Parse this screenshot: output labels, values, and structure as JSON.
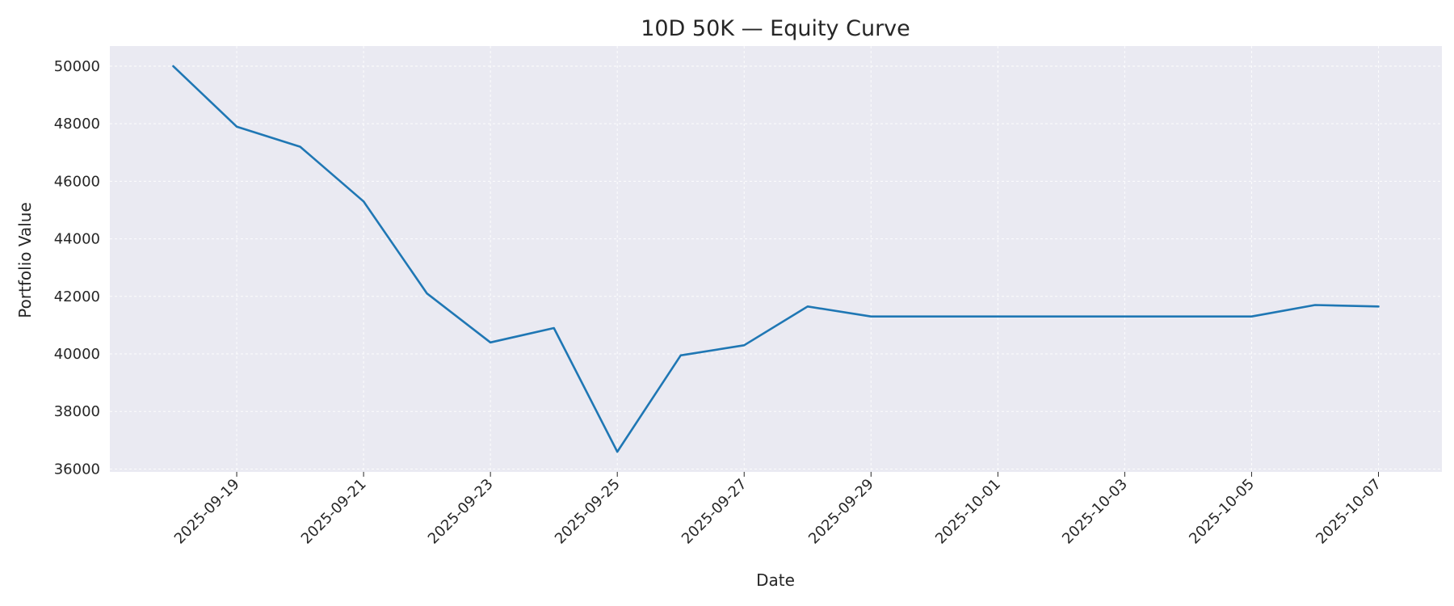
{
  "chart_data": {
    "type": "line",
    "title": "10D 50K — Equity Curve",
    "xlabel": "Date",
    "ylabel": "Portfolio Value",
    "x": [
      "2025-09-18",
      "2025-09-19",
      "2025-09-20",
      "2025-09-21",
      "2025-09-22",
      "2025-09-23",
      "2025-09-24",
      "2025-09-25",
      "2025-09-26",
      "2025-09-27",
      "2025-09-28",
      "2025-09-29",
      "2025-09-30",
      "2025-10-01",
      "2025-10-02",
      "2025-10-03",
      "2025-10-04",
      "2025-10-05",
      "2025-10-06",
      "2025-10-07"
    ],
    "series": [
      {
        "values": [
          50000,
          47900,
          47200,
          45300,
          42100,
          40400,
          40900,
          36600,
          39950,
          40300,
          41650,
          41300,
          41300,
          41300,
          41300,
          41300,
          41300,
          41300,
          41700,
          41650
        ],
        "color": "#1f77b4"
      }
    ],
    "xticks": [
      "2025-09-19",
      "2025-09-21",
      "2025-09-23",
      "2025-09-25",
      "2025-09-27",
      "2025-09-29",
      "2025-10-01",
      "2025-10-03",
      "2025-10-05",
      "2025-10-07"
    ],
    "xlim": [
      "2025-09-17",
      "2025-10-08"
    ],
    "yticks": [
      36000,
      38000,
      40000,
      42000,
      44000,
      46000,
      48000,
      50000
    ],
    "ylim": [
      35900,
      50700
    ],
    "grid": true,
    "background_color": "#eaeaf2"
  }
}
